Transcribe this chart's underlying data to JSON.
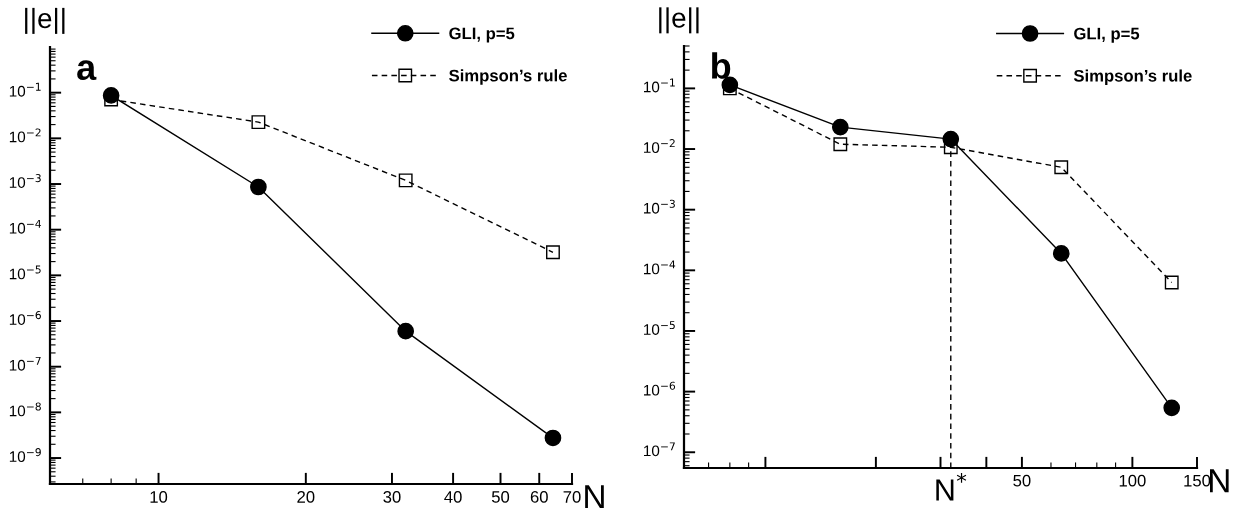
{
  "chart_data": [
    {
      "type": "line",
      "title": "a",
      "xlabel": "N",
      "ylabel": "||e||",
      "log": "xy",
      "legend": "top right",
      "x": [
        8,
        16,
        32,
        64
      ],
      "xlim": [
        6,
        70
      ],
      "xticks": [
        10,
        20,
        30,
        40,
        50,
        60,
        70
      ],
      "ylim": [
        2.7e-10,
        1
      ],
      "yticks": [
        {
          "value": 1e-09,
          "label": "10$^{−9}$"
        },
        {
          "value": 1e-08,
          "label": "10$^{−8}$"
        },
        {
          "value": 1e-07,
          "label": "10$^{−7}$"
        },
        {
          "value": 1e-06,
          "label": "10$^{−6}$"
        },
        {
          "value": 1e-05,
          "label": "10$^{−5}$"
        },
        {
          "value": 0.0001,
          "label": "10$^{−4}$"
        },
        {
          "value": 0.001,
          "label": "10$^{−3}$"
        },
        {
          "value": 0.01,
          "label": "10$^{−2}$"
        },
        {
          "value": 0.1,
          "label": "10$^{−1}$"
        }
      ],
      "series": [
        {
          "name": "GLI, p=5",
          "color": "#000000",
          "marker": "circle",
          "line_style": "solid",
          "values": [
            0.087,
            0.00086,
            6e-07,
            2.75e-09
          ]
        },
        {
          "name": "Simpson’s rule",
          "color": "#000000",
          "marker": "square",
          "line_style": "dashed",
          "values": [
            0.071,
            0.0227,
            0.0012,
            3.2e-05
          ]
        }
      ]
    },
    {
      "type": "line",
      "title": "b",
      "xlabel": "N",
      "ylabel": "||e||",
      "log": "xy",
      "legend": "top right",
      "x": [
        8,
        16,
        32,
        64,
        128
      ],
      "xlim": [
        6,
        150
      ],
      "xticks": [
        {
          "value": 10,
          "label": null
        },
        {
          "value": 20,
          "label": null
        },
        {
          "value": 30,
          "label": null
        },
        {
          "value": 40,
          "label": null
        },
        50,
        100,
        150
      ],
      "ylim": [
        5.5e-08,
        0.5
      ],
      "yticks": [
        {
          "value": 1e-07,
          "label": "10$^{−7}$"
        },
        {
          "value": 1e-06,
          "label": "10$^{−6}$"
        },
        {
          "value": 1e-05,
          "label": "10$^{−5}$"
        },
        {
          "value": 0.0001,
          "label": "10$^{−4}$"
        },
        {
          "value": 0.001,
          "label": "10$^{−3}$"
        },
        {
          "value": 0.01,
          "label": "10$^{−2}$"
        },
        {
          "value": 0.1,
          "label": "10$^{−1}$"
        }
      ],
      "ref_lines": [
        {
          "axis": "x",
          "value": 32,
          "label": "N$^{*}$",
          "line_style": "dashed",
          "color": "#000000"
        }
      ],
      "series": [
        {
          "name": "GLI, p=5",
          "color": "#000000",
          "marker": "circle",
          "line_style": "solid",
          "values": [
            0.114,
            0.023,
            0.0146,
            0.00019,
            5.4e-07
          ]
        },
        {
          "name": "Simpson’s rule",
          "color": "#000000",
          "marker": "square",
          "line_style": "dashed",
          "values": [
            0.1,
            0.012,
            0.0107,
            0.005,
            6.3e-05
          ]
        }
      ]
    }
  ]
}
